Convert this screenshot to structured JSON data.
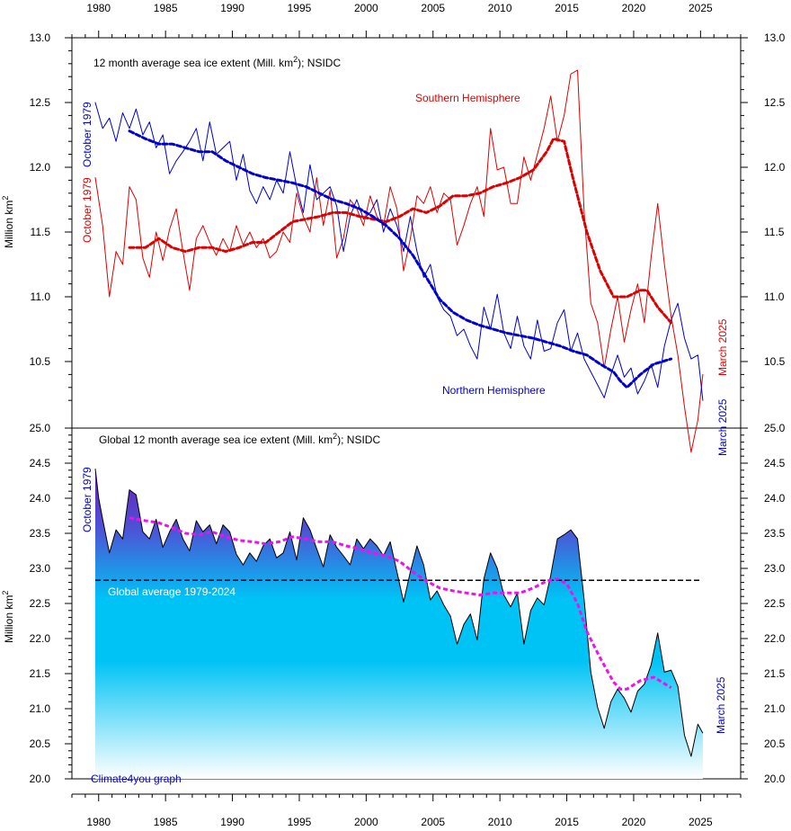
{
  "colors": {
    "south": "#dd0000",
    "north": "#0000cc",
    "global_fill_top": "#6a1fb8",
    "global_fill_mid": "#00c3f5",
    "global_fill_bottom": "#ffffff",
    "global_avg_smooth": "#ee11ee",
    "global_reference_line": "#000000"
  },
  "chart_data": [
    {
      "type": "line",
      "title": "12 month average sea ice extent (Mill. km²); NSIDC",
      "title_main": "12 month average sea ice extent (Mill. km",
      "title_sup": "2",
      "title_tail": "); NSIDC",
      "ylabel_main": "Million km",
      "ylabel_sup": "2",
      "ylim": [
        10.15,
        13.0
      ],
      "yticks": [
        13.0,
        12.5,
        12.0,
        11.5,
        11.0,
        10.5
      ],
      "ytick_labels": [
        "13.0",
        "12.5",
        "12.0",
        "11.5",
        "11.0",
        "10.5"
      ],
      "xlim": [
        1978,
        2028
      ],
      "xticks": [
        1980,
        1985,
        1990,
        1995,
        2000,
        2005,
        2010,
        2015,
        2020,
        2025
      ],
      "xtick_labels": [
        "1980",
        "1985",
        "1990",
        "1995",
        "2000",
        "2005",
        "2010",
        "2015",
        "2020",
        "2025"
      ],
      "annotations": {
        "north_start": "October 1979",
        "south_start": "October 1979",
        "south_end": "March 2025",
        "north_end": "March 2025",
        "south_label": "Southern Hemisphere",
        "north_label": "Northern Hemisphere"
      },
      "series": [
        {
          "name": "Southern Hemisphere",
          "style": "thin",
          "color_key": "south",
          "x": [
            1979.75,
            1980.3,
            1980.8,
            1981.3,
            1981.8,
            1982.3,
            1982.8,
            1983.3,
            1983.8,
            1984.3,
            1984.8,
            1985.3,
            1985.8,
            1986.3,
            1986.8,
            1987.3,
            1987.8,
            1988.3,
            1988.8,
            1989.3,
            1989.8,
            1990.3,
            1990.8,
            1991.3,
            1991.8,
            1992.3,
            1992.8,
            1993.3,
            1993.8,
            1994.3,
            1994.8,
            1995.3,
            1995.8,
            1996.3,
            1996.8,
            1997.3,
            1997.8,
            1998.3,
            1998.8,
            1999.3,
            1999.8,
            2000.3,
            2000.8,
            2001.3,
            2001.8,
            2002.3,
            2002.8,
            2003.3,
            2003.8,
            2004.3,
            2004.8,
            2005.3,
            2005.8,
            2006.3,
            2006.8,
            2007.3,
            2007.8,
            2008.3,
            2008.8,
            2009.3,
            2009.8,
            2010.3,
            2010.8,
            2011.3,
            2011.8,
            2012.3,
            2012.8,
            2013.3,
            2013.8,
            2014.3,
            2014.8,
            2015.3,
            2015.8,
            2016.3,
            2016.8,
            2017.3,
            2017.8,
            2018.3,
            2018.8,
            2019.3,
            2019.8,
            2020.3,
            2020.8,
            2021.3,
            2021.8,
            2022.3,
            2022.8,
            2023.3,
            2023.8,
            2024.3,
            2024.8,
            2025.17
          ],
          "y": [
            11.92,
            11.55,
            11.0,
            11.35,
            11.25,
            11.85,
            11.75,
            11.3,
            11.15,
            11.5,
            11.28,
            11.52,
            11.68,
            11.35,
            11.05,
            11.45,
            11.55,
            11.42,
            11.32,
            11.45,
            11.35,
            11.55,
            11.4,
            11.5,
            11.38,
            11.45,
            11.3,
            11.35,
            11.5,
            11.42,
            11.8,
            11.62,
            11.5,
            11.92,
            11.55,
            11.82,
            11.3,
            11.45,
            11.75,
            11.68,
            11.55,
            11.78,
            11.62,
            11.55,
            11.85,
            11.68,
            11.2,
            11.45,
            11.78,
            11.72,
            11.85,
            11.65,
            11.8,
            11.75,
            11.4,
            11.55,
            11.72,
            11.85,
            11.62,
            12.3,
            11.98,
            12.0,
            11.72,
            11.72,
            12.08,
            11.9,
            12.1,
            12.3,
            12.55,
            12.2,
            12.4,
            12.72,
            12.75,
            11.65,
            10.95,
            10.8,
            10.45,
            10.75,
            11.0,
            10.65,
            10.9,
            11.1,
            10.8,
            11.3,
            11.72,
            11.25,
            10.85,
            10.55,
            10.15,
            9.8,
            10.05,
            10.4
          ]
        },
        {
          "name": "Northern Hemisphere",
          "style": "thin",
          "color_key": "north",
          "x": [
            1979.75,
            1980.3,
            1980.8,
            1981.3,
            1981.8,
            1982.3,
            1982.8,
            1983.3,
            1983.8,
            1984.3,
            1984.8,
            1985.3,
            1985.8,
            1986.3,
            1986.8,
            1987.3,
            1987.8,
            1988.3,
            1988.8,
            1989.3,
            1989.8,
            1990.3,
            1990.8,
            1991.3,
            1991.8,
            1992.3,
            1992.8,
            1993.3,
            1993.8,
            1994.3,
            1994.8,
            1995.3,
            1995.8,
            1996.3,
            1996.8,
            1997.3,
            1997.8,
            1998.3,
            1998.8,
            1999.3,
            1999.8,
            2000.3,
            2000.8,
            2001.3,
            2001.8,
            2002.3,
            2002.8,
            2003.3,
            2003.8,
            2004.3,
            2004.8,
            2005.3,
            2005.8,
            2006.3,
            2006.8,
            2007.3,
            2007.8,
            2008.3,
            2008.8,
            2009.3,
            2009.8,
            2010.3,
            2010.8,
            2011.3,
            2011.8,
            2012.3,
            2012.8,
            2013.3,
            2013.8,
            2014.3,
            2014.8,
            2015.3,
            2015.8,
            2016.3,
            2016.8,
            2017.3,
            2017.8,
            2018.3,
            2018.8,
            2019.3,
            2019.8,
            2020.3,
            2020.8,
            2021.3,
            2021.8,
            2022.3,
            2022.8,
            2023.3,
            2023.8,
            2024.3,
            2024.8,
            2025.17
          ],
          "y": [
            12.5,
            12.3,
            12.38,
            12.2,
            12.42,
            12.3,
            12.45,
            12.25,
            12.35,
            12.15,
            12.25,
            11.95,
            12.05,
            12.12,
            12.2,
            12.3,
            12.05,
            12.35,
            12.1,
            12.15,
            12.2,
            11.9,
            12.1,
            11.82,
            11.72,
            11.85,
            11.75,
            11.9,
            11.8,
            12.12,
            11.85,
            11.65,
            12.02,
            11.75,
            11.8,
            11.85,
            11.7,
            11.35,
            11.62,
            11.75,
            11.6,
            11.65,
            11.75,
            11.5,
            11.68,
            11.55,
            11.35,
            11.62,
            11.35,
            11.15,
            11.25,
            11.0,
            10.9,
            10.85,
            10.7,
            10.75,
            10.62,
            10.52,
            10.92,
            10.75,
            11.02,
            10.72,
            10.6,
            10.85,
            10.62,
            10.52,
            10.82,
            10.58,
            10.6,
            10.8,
            10.9,
            10.58,
            10.72,
            10.52,
            10.42,
            10.32,
            10.22,
            10.4,
            10.55,
            10.38,
            10.45,
            10.25,
            10.35,
            10.48,
            10.3,
            10.62,
            10.82,
            10.95,
            10.68,
            10.52,
            10.55,
            10.2
          ]
        },
        {
          "name": "Southern Hemisphere",
          "style": "smooth",
          "color_key": "south",
          "x": [
            1982.3,
            1983.5,
            1984.5,
            1985.5,
            1986.5,
            1987.5,
            1988.5,
            1989.5,
            1990.5,
            1991.5,
            1992.5,
            1993.5,
            1994.5,
            1995.5,
            1996.5,
            1997.5,
            1998.5,
            1999.5,
            2000.5,
            2001.5,
            2002.5,
            2003.5,
            2004.5,
            2005.5,
            2006.5,
            2007.5,
            2008.5,
            2009.5,
            2010.5,
            2011.5,
            2012.5,
            2013.5,
            2014.0,
            2014.8,
            2015.5,
            2016.5,
            2017.5,
            2018.5,
            2019.5,
            2020.5,
            2021.0,
            2021.8,
            2022.8
          ],
          "y": [
            11.38,
            11.38,
            11.45,
            11.38,
            11.35,
            11.38,
            11.38,
            11.35,
            11.38,
            11.42,
            11.42,
            11.5,
            11.58,
            11.6,
            11.62,
            11.65,
            11.65,
            11.62,
            11.6,
            11.58,
            11.62,
            11.68,
            11.65,
            11.7,
            11.78,
            11.78,
            11.8,
            11.85,
            11.88,
            11.92,
            11.98,
            12.12,
            12.22,
            12.2,
            11.9,
            11.5,
            11.2,
            11.0,
            11.0,
            11.05,
            11.05,
            10.92,
            10.8
          ]
        },
        {
          "name": "Northern Hemisphere",
          "style": "smooth",
          "color_key": "north",
          "x": [
            1982.3,
            1983.5,
            1984.5,
            1985.5,
            1986.5,
            1987.5,
            1988.5,
            1989.5,
            1990.5,
            1991.5,
            1992.5,
            1993.5,
            1994.5,
            1995.5,
            1996.5,
            1997.5,
            1998.5,
            1999.5,
            2000.5,
            2001.5,
            2002.5,
            2003.5,
            2004.5,
            2005.5,
            2006.5,
            2007.5,
            2008.5,
            2009.5,
            2010.5,
            2011.5,
            2012.5,
            2013.5,
            2014.5,
            2015.5,
            2016.5,
            2017.5,
            2018.5,
            2019.0,
            2019.5,
            2020.5,
            2021.5,
            2022.8
          ],
          "y": [
            12.28,
            12.22,
            12.18,
            12.18,
            12.15,
            12.12,
            12.12,
            12.05,
            12.0,
            11.95,
            11.92,
            11.9,
            11.88,
            11.85,
            11.8,
            11.75,
            11.72,
            11.68,
            11.62,
            11.55,
            11.45,
            11.32,
            11.15,
            10.98,
            10.88,
            10.82,
            10.78,
            10.75,
            10.72,
            10.7,
            10.68,
            10.65,
            10.62,
            10.58,
            10.55,
            10.48,
            10.42,
            10.35,
            10.3,
            10.4,
            10.48,
            10.52
          ]
        }
      ]
    },
    {
      "type": "area",
      "title": "Global 12 month average sea ice extent (Mill. km²); NSIDC",
      "title_main": "Global 12 month average sea ice extent (Mill. km",
      "title_sup": "2",
      "title_tail": "); NSIDC",
      "ylabel_main": "Million km",
      "ylabel_sup": "2",
      "ylim": [
        20.0,
        25.0
      ],
      "yticks": [
        25.0,
        24.5,
        24.0,
        23.5,
        23.0,
        22.5,
        22.0,
        21.5,
        21.0,
        20.5,
        20.0
      ],
      "ytick_labels": [
        "25.0",
        "24.5",
        "24.0",
        "23.5",
        "23.0",
        "22.5",
        "22.0",
        "21.5",
        "21.0",
        "20.5",
        "20.0"
      ],
      "xlim": [
        1978,
        2028
      ],
      "xticks": [
        1980,
        1985,
        1990,
        1995,
        2000,
        2005,
        2010,
        2015,
        2020,
        2025
      ],
      "xtick_labels": [
        "1980",
        "1985",
        "1990",
        "1995",
        "2000",
        "2005",
        "2010",
        "2015",
        "2020",
        "2025"
      ],
      "reference_line": {
        "label": "Global average 1979-2024",
        "y": 22.83
      },
      "annotations": {
        "start": "October 1979",
        "end": "March 2025",
        "credit": "Climate4you graph"
      },
      "series": [
        {
          "name": "Global",
          "style": "area",
          "x": [
            1979.75,
            1980.0,
            1980.3,
            1980.8,
            1981.3,
            1981.8,
            1982.3,
            1982.8,
            1983.3,
            1983.8,
            1984.3,
            1984.8,
            1985.3,
            1985.8,
            1986.3,
            1986.8,
            1987.3,
            1987.8,
            1988.3,
            1988.8,
            1989.3,
            1989.8,
            1990.3,
            1990.8,
            1991.3,
            1991.8,
            1992.3,
            1992.8,
            1993.3,
            1993.8,
            1994.3,
            1994.8,
            1995.3,
            1995.8,
            1996.3,
            1996.8,
            1997.3,
            1997.8,
            1998.3,
            1998.8,
            1999.3,
            1999.8,
            2000.3,
            2000.8,
            2001.3,
            2001.8,
            2002.3,
            2002.8,
            2003.3,
            2003.8,
            2004.3,
            2004.8,
            2005.3,
            2005.8,
            2006.3,
            2006.8,
            2007.3,
            2007.8,
            2008.3,
            2008.8,
            2009.3,
            2009.8,
            2010.3,
            2010.8,
            2011.3,
            2011.8,
            2012.3,
            2012.8,
            2013.3,
            2013.8,
            2014.3,
            2014.8,
            2015.3,
            2015.8,
            2016.3,
            2016.8,
            2017.3,
            2017.8,
            2018.3,
            2018.8,
            2019.3,
            2019.8,
            2020.3,
            2020.8,
            2021.3,
            2021.8,
            2022.3,
            2022.8,
            2023.3,
            2023.8,
            2024.3,
            2024.8,
            2025.17
          ],
          "y": [
            24.42,
            24.0,
            23.7,
            23.22,
            23.55,
            23.42,
            24.12,
            24.05,
            23.52,
            23.42,
            23.7,
            23.3,
            23.52,
            23.7,
            23.42,
            23.25,
            23.68,
            23.52,
            23.62,
            23.35,
            23.62,
            23.52,
            23.2,
            23.05,
            23.22,
            23.1,
            23.32,
            23.42,
            23.15,
            23.22,
            23.52,
            23.12,
            23.72,
            23.55,
            23.28,
            23.02,
            23.48,
            23.3,
            23.18,
            23.05,
            23.42,
            23.28,
            23.42,
            23.32,
            23.18,
            23.38,
            22.95,
            22.52,
            22.95,
            23.32,
            23.05,
            22.55,
            22.68,
            22.48,
            22.32,
            21.92,
            22.2,
            22.35,
            21.98,
            22.85,
            23.22,
            23.0,
            22.62,
            22.45,
            22.65,
            21.92,
            22.4,
            22.58,
            22.48,
            22.9,
            23.42,
            23.48,
            23.55,
            23.42,
            22.55,
            21.52,
            21.02,
            20.72,
            21.1,
            21.28,
            21.15,
            20.95,
            21.25,
            21.35,
            21.62,
            22.08,
            21.52,
            21.55,
            21.32,
            20.62,
            20.32,
            20.78,
            20.65
          ]
        },
        {
          "name": "Global",
          "style": "smooth",
          "x": [
            1982.3,
            1983.5,
            1984.5,
            1985.5,
            1986.5,
            1987.5,
            1988.5,
            1989.5,
            1990.5,
            1991.5,
            1992.5,
            1993.5,
            1994.5,
            1995.5,
            1996.5,
            1997.5,
            1998.5,
            1999.5,
            2000.5,
            2001.5,
            2002.5,
            2003.5,
            2004.5,
            2005.5,
            2006.5,
            2007.5,
            2008.5,
            2009.5,
            2010.5,
            2011.5,
            2012.5,
            2013.5,
            2014.3,
            2015.0,
            2015.8,
            2016.5,
            2017.5,
            2018.5,
            2019.0,
            2019.5,
            2020.5,
            2021.5,
            2022.8
          ],
          "y": [
            23.72,
            23.68,
            23.65,
            23.58,
            23.5,
            23.48,
            23.52,
            23.45,
            23.4,
            23.38,
            23.35,
            23.38,
            23.45,
            23.42,
            23.38,
            23.38,
            23.32,
            23.28,
            23.22,
            23.18,
            23.1,
            22.95,
            22.82,
            22.72,
            22.68,
            22.65,
            22.62,
            22.65,
            22.65,
            22.65,
            22.72,
            22.82,
            22.85,
            22.78,
            22.5,
            22.1,
            21.72,
            21.38,
            21.28,
            21.28,
            21.4,
            21.45,
            21.3
          ]
        }
      ]
    }
  ]
}
